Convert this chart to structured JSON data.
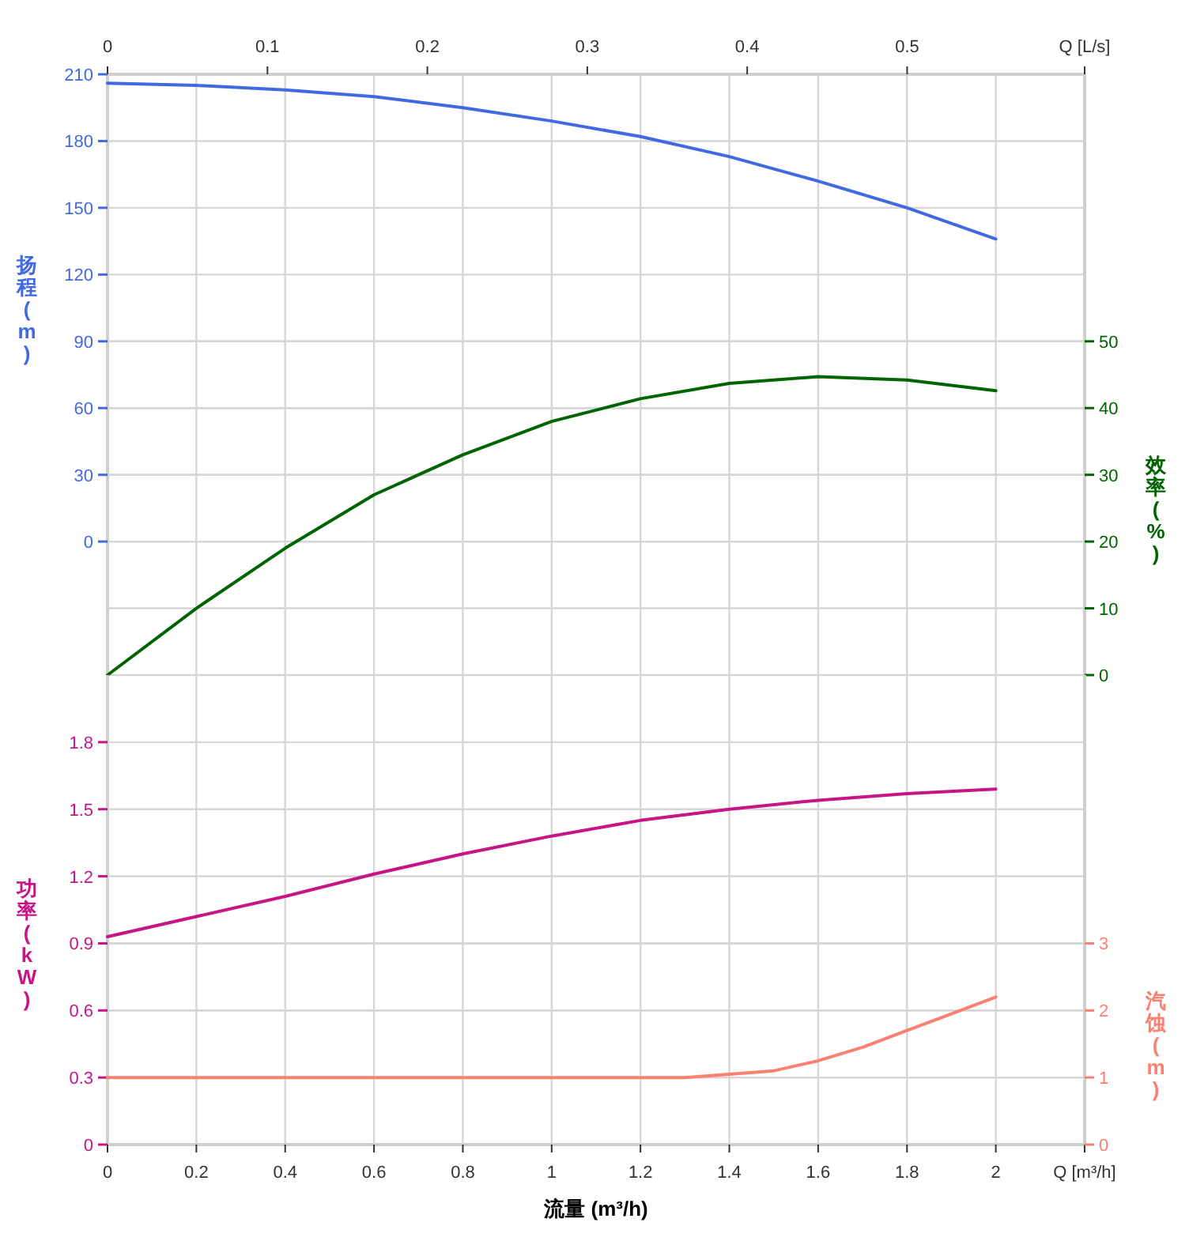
{
  "chart_data": [
    {
      "type": "line",
      "ylabel": "扬程 (m)",
      "y2label": "效率 (%)",
      "x": [
        0,
        0.2,
        0.4,
        0.6,
        0.8,
        1,
        1.2,
        1.4,
        1.6,
        1.8,
        2
      ],
      "series": [
        {
          "color": "#4169e1",
          "values": [
            206,
            205,
            203,
            200,
            195,
            189,
            182,
            173,
            162,
            150,
            136
          ]
        },
        {
          "color": "#006400",
          "axis": "y2",
          "values": [
            0,
            10,
            19,
            27,
            33,
            38,
            41.4,
            43.7,
            44.7,
            44.2,
            42.6
          ]
        }
      ],
      "xlim": [
        0,
        2.2
      ],
      "x2lim": [
        0,
        0.611
      ],
      "x2ticks": [
        0,
        0.1,
        0.2,
        0.3,
        0.4,
        0.5,
        {
          "value": 0.611,
          "label": "Q [L/s]"
        }
      ],
      "ylim": [
        -60,
        210
      ],
      "yticks": [
        0,
        30,
        60,
        90,
        120,
        150,
        180,
        210
      ],
      "y2lim": [
        0,
        90
      ],
      "y2ticks": [
        0,
        10,
        20,
        30,
        40,
        50
      ],
      "tick_labels": "y",
      "grid": true
    },
    {
      "type": "line",
      "xlabel": "流量 (m³/h)",
      "ylabel": "功率 (kW)",
      "y2label": "汽蚀 (m)",
      "x": [
        0,
        0.2,
        0.4,
        0.6,
        0.8,
        1,
        1.2,
        1.4,
        1.6,
        1.8,
        2
      ],
      "series": [
        {
          "color": "#c71585",
          "values": [
            0.93,
            1.02,
            1.11,
            1.21,
            1.3,
            1.38,
            1.45,
            1.5,
            1.54,
            1.57,
            1.59
          ]
        },
        {
          "color": "#fa8072",
          "axis": "y2",
          "x": [
            0,
            0.2,
            0.4,
            0.6,
            0.8,
            1,
            1.2,
            1.3,
            1.4,
            1.5,
            1.6,
            1.7,
            1.8,
            1.9,
            2
          ],
          "values": [
            1,
            1,
            1,
            1,
            1,
            1,
            1,
            1,
            1.05,
            1.1,
            1.25,
            1.45,
            1.7,
            1.95,
            2.2
          ]
        }
      ],
      "xlim": [
        0,
        2.2
      ],
      "xticks": [
        0,
        0.2,
        0.4,
        0.6,
        0.8,
        1,
        1.2,
        1.4,
        1.6,
        1.8,
        2,
        {
          "value": 2.2,
          "label": "Q [m³/h]"
        }
      ],
      "ylim": [
        0,
        2.1
      ],
      "yticks": [
        0,
        0.3,
        0.6,
        0.9,
        1.2,
        1.5,
        1.8
      ],
      "y2lim": [
        0,
        7
      ],
      "y2ticks": [
        0,
        1,
        2,
        3
      ],
      "grid": true
    }
  ]
}
